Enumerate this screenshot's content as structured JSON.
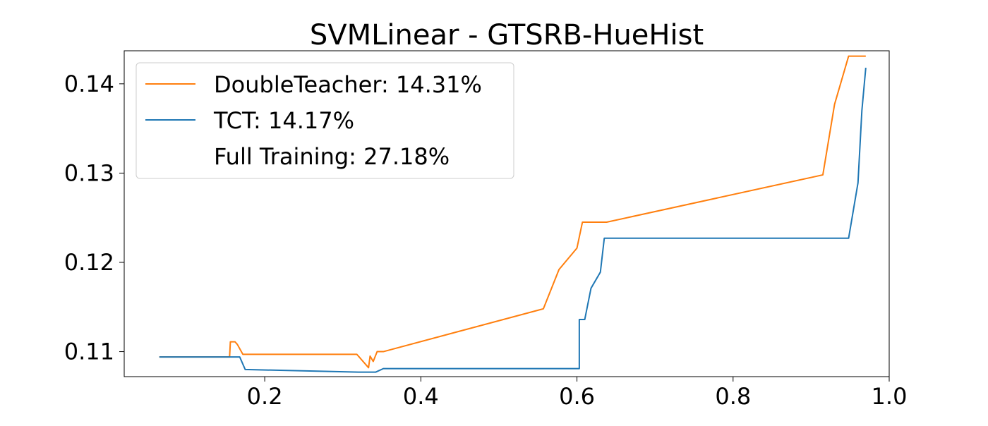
{
  "chart_data": {
    "type": "line",
    "title": "SVMLinear - GTSRB-HueHist",
    "xlabel": "",
    "ylabel": "",
    "xlim": [
      0.02,
      1.0
    ],
    "ylim": [
      0.1072,
      0.1437
    ],
    "x_ticks": [
      {
        "value": 0.2,
        "label": "0.2"
      },
      {
        "value": 0.4,
        "label": "0.4"
      },
      {
        "value": 0.6,
        "label": "0.6"
      },
      {
        "value": 0.8,
        "label": "0.8"
      },
      {
        "value": 1.0,
        "label": "1.0"
      }
    ],
    "y_ticks": [
      {
        "value": 0.11,
        "label": "0.11"
      },
      {
        "value": 0.12,
        "label": "0.12"
      },
      {
        "value": 0.13,
        "label": "0.13"
      },
      {
        "value": 0.14,
        "label": "0.14"
      }
    ],
    "grid": false,
    "legend_position": "top-left",
    "series": [
      {
        "name": "DoubleTeacher: 14.31%",
        "color": "#ff7f0e",
        "points": [
          [
            0.065,
            0.1094
          ],
          [
            0.155,
            0.1094
          ],
          [
            0.156,
            0.1111
          ],
          [
            0.162,
            0.1111
          ],
          [
            0.165,
            0.1108
          ],
          [
            0.172,
            0.1097
          ],
          [
            0.2,
            0.1097
          ],
          [
            0.318,
            0.1097
          ],
          [
            0.333,
            0.1082
          ],
          [
            0.335,
            0.1095
          ],
          [
            0.339,
            0.1089
          ],
          [
            0.344,
            0.11
          ],
          [
            0.352,
            0.11
          ],
          [
            0.557,
            0.1148
          ],
          [
            0.577,
            0.1192
          ],
          [
            0.6,
            0.1216
          ],
          [
            0.607,
            0.1245
          ],
          [
            0.638,
            0.1245
          ],
          [
            0.915,
            0.1298
          ],
          [
            0.93,
            0.1377
          ],
          [
            0.948,
            0.1431
          ],
          [
            0.97,
            0.1431
          ]
        ]
      },
      {
        "name": "TCT: 14.17%",
        "color": "#1f77b4",
        "points": [
          [
            0.065,
            0.1094
          ],
          [
            0.168,
            0.1094
          ],
          [
            0.175,
            0.108
          ],
          [
            0.32,
            0.1077
          ],
          [
            0.342,
            0.1077
          ],
          [
            0.352,
            0.1081
          ],
          [
            0.603,
            0.1081
          ],
          [
            0.603,
            0.1136
          ],
          [
            0.61,
            0.1136
          ],
          [
            0.618,
            0.1171
          ],
          [
            0.63,
            0.1189
          ],
          [
            0.635,
            0.1227
          ],
          [
            0.948,
            0.1227
          ],
          [
            0.96,
            0.1289
          ],
          [
            0.965,
            0.137
          ],
          [
            0.97,
            0.1418
          ]
        ]
      },
      {
        "name": "Full Training: 27.18%",
        "color": "none",
        "points": []
      }
    ]
  }
}
